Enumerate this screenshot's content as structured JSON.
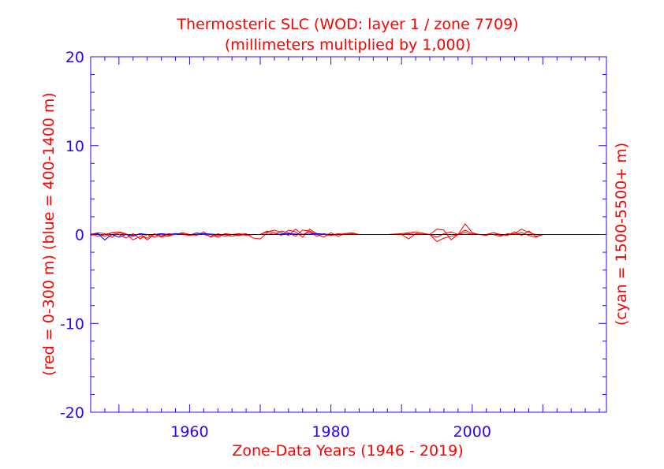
{
  "chart_data": {
    "type": "line",
    "title": "Thermosteric SLC (WOD: layer 1 / zone 7709)",
    "subtitle": "(millimeters multiplied by 1,000)",
    "xlabel": "Zone-Data Years (1946 - 2019)",
    "ylabel_left": "(red = 0-300 m)  (blue = 400-1400 m)",
    "ylabel_right": "(cyan = 1500-5500+ m)",
    "xlim": [
      1946,
      2019
    ],
    "ylim": [
      -20,
      20
    ],
    "x_ticks": [
      1960,
      1980,
      2000
    ],
    "y_ticks": [
      -20,
      -10,
      0,
      10,
      20
    ],
    "x_tick_labels": [
      "1960",
      "1980",
      "2000"
    ],
    "y_tick_labels": [
      "-20",
      "-10",
      "0",
      "10",
      "20"
    ],
    "colors": {
      "axis": "#3300ff",
      "text": "#ff0000",
      "red": "#ff0000",
      "blue": "#0000ff"
    },
    "series": [
      {
        "name": "red-1",
        "color": "red",
        "x": [
          1946,
          1947,
          1948,
          1949,
          1950,
          1951,
          1952,
          1953,
          1954,
          1955,
          1956,
          1957,
          1958,
          1959,
          1960,
          1961,
          1962,
          1963,
          1964,
          1965,
          1966,
          1967,
          1968,
          1969,
          1970,
          1971,
          1972,
          1973,
          1974,
          1975,
          1976,
          1977,
          1978,
          1979,
          1980,
          1981,
          1982,
          1983,
          1984,
          1986,
          1988,
          1990,
          1991,
          1992,
          1994,
          1995,
          1996,
          1997,
          1998,
          1999,
          2000,
          2001,
          2002,
          2003,
          2004,
          2005,
          2006,
          2007,
          2008,
          2009,
          2010,
          2012,
          2019
        ],
        "values": [
          -0.1,
          0.1,
          -0.2,
          0.2,
          0.3,
          0.1,
          -0.6,
          -0.2,
          -0.4,
          0.1,
          -0.3,
          -0.1,
          0.0,
          0.2,
          0.0,
          -0.1,
          0.3,
          -0.3,
          0.1,
          -0.2,
          0.0,
          0.1,
          -0.1,
          0.0,
          0.0,
          0.3,
          0.5,
          0.2,
          -0.1,
          0.6,
          0.0,
          0.3,
          -0.2,
          0.1,
          -0.1,
          0.0,
          0.1,
          0.2,
          0.0,
          0.0,
          0.0,
          0.1,
          0.2,
          0.3,
          0.0,
          0.6,
          0.5,
          -0.6,
          0.0,
          1.2,
          0.2,
          0.0,
          -0.1,
          0.2,
          -0.1,
          0.0,
          0.1,
          0.6,
          0.2,
          0.0,
          0.0,
          0.0,
          0.0
        ]
      },
      {
        "name": "red-2",
        "color": "red",
        "x": [
          1946,
          1947,
          1948,
          1949,
          1950,
          1951,
          1952,
          1953,
          1954,
          1955,
          1956,
          1957,
          1958,
          1959,
          1960,
          1961,
          1962,
          1963,
          1964,
          1965,
          1966,
          1967,
          1968,
          1969,
          1970,
          1971,
          1972,
          1973,
          1974,
          1975,
          1976,
          1977,
          1978,
          1979,
          1980,
          1981,
          1982,
          1983,
          1984,
          1986,
          1988,
          1990,
          1991,
          1992,
          1994,
          1995,
          1996,
          1997,
          1998,
          1999,
          2000,
          2001,
          2002,
          2003,
          2004,
          2005,
          2006,
          2007,
          2008,
          2009,
          2010,
          2012,
          2019
        ],
        "values": [
          0.1,
          -0.2,
          0.0,
          0.2,
          0.0,
          -0.4,
          0.1,
          -0.5,
          0.0,
          -0.3,
          0.0,
          -0.2,
          0.1,
          0.0,
          -0.1,
          0.2,
          0.0,
          -0.2,
          -0.1,
          0.0,
          -0.2,
          0.0,
          0.1,
          -0.4,
          -0.5,
          0.2,
          0.0,
          0.4,
          0.2,
          -0.2,
          0.5,
          0.4,
          0.0,
          -0.3,
          0.2,
          -0.2,
          0.1,
          0.0,
          0.0,
          0.0,
          0.0,
          0.0,
          -0.5,
          0.1,
          0.0,
          -0.3,
          0.1,
          0.3,
          0.0,
          0.5,
          0.1,
          0.0,
          0.0,
          0.2,
          0.0,
          -0.1,
          0.3,
          -0.1,
          0.4,
          -0.2,
          0.0,
          0.0,
          0.0
        ]
      },
      {
        "name": "red-3",
        "color": "red",
        "x": [
          1946,
          1947,
          1948,
          1949,
          1950,
          1951,
          1952,
          1953,
          1954,
          1955,
          1956,
          1957,
          1958,
          1959,
          1960,
          1961,
          1962,
          1963,
          1964,
          1965,
          1966,
          1967,
          1968,
          1969,
          1970,
          1971,
          1972,
          1973,
          1974,
          1975,
          1976,
          1977,
          1978,
          1979,
          1980,
          1981,
          1982,
          1983,
          1984,
          1986,
          1988,
          1990,
          1991,
          1992,
          1994,
          1995,
          1996,
          1997,
          1998,
          1999,
          2000,
          2001,
          2002,
          2003,
          2004,
          2005,
          2006,
          2007,
          2008,
          2009,
          2010,
          2012,
          2019
        ],
        "values": [
          0.0,
          0.2,
          0.1,
          -0.3,
          0.2,
          0.0,
          -0.1,
          0.1,
          -0.6,
          0.0,
          -0.2,
          0.1,
          0.0,
          0.1,
          -0.1,
          0.0,
          0.1,
          0.0,
          -0.3,
          0.1,
          0.0,
          -0.1,
          0.0,
          0.0,
          0.0,
          0.4,
          0.2,
          -0.1,
          0.5,
          0.3,
          -0.3,
          0.6,
          0.1,
          0.0,
          -0.1,
          0.1,
          0.0,
          0.1,
          0.0,
          0.0,
          0.0,
          0.0,
          0.1,
          0.0,
          0.0,
          -0.8,
          -0.4,
          -0.2,
          0.0,
          0.2,
          0.0,
          0.0,
          0.0,
          0.0,
          -0.2,
          0.1,
          0.0,
          0.2,
          -0.1,
          -0.3,
          0.0,
          0.0,
          0.0
        ]
      },
      {
        "name": "blue-1",
        "color": "blue",
        "x": [
          1946,
          1947,
          1948,
          1949,
          1950,
          1951,
          1952,
          1953,
          1954,
          1955,
          1956,
          1957,
          1958,
          1959,
          1960,
          1962,
          1964,
          1966,
          1968,
          1970,
          1972,
          1974,
          1976,
          1978,
          1980,
          1982,
          1984,
          1990,
          2000,
          2010,
          2019
        ],
        "values": [
          0.0,
          0.1,
          -0.6,
          0.0,
          -0.3,
          0.0,
          -0.2,
          0.1,
          0.0,
          0.0,
          0.1,
          0.0,
          0.1,
          0.0,
          0.0,
          0.1,
          0.0,
          0.0,
          0.0,
          0.0,
          0.0,
          0.1,
          0.0,
          0.1,
          0.0,
          0.0,
          0.0,
          0.0,
          0.0,
          0.0,
          0.0
        ]
      }
    ]
  }
}
